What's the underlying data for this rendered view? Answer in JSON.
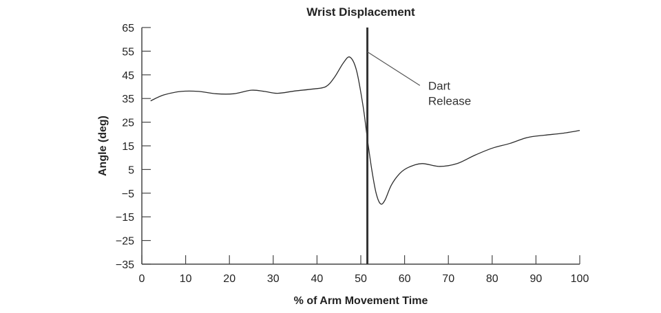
{
  "chart_data": {
    "type": "line",
    "title": "Wrist Displacement",
    "xlabel": "% of Arm Movement Time",
    "ylabel": "Angle (deg)",
    "xlim": [
      0,
      100
    ],
    "ylim": [
      -35,
      65
    ],
    "x_ticks": [
      "0",
      "10",
      "20",
      "30",
      "40",
      "50",
      "60",
      "70",
      "80",
      "90",
      "100"
    ],
    "y_ticks": [
      "65",
      "55",
      "45",
      "35",
      "25",
      "15",
      "5",
      "−5",
      "−15",
      "−25",
      "−35"
    ],
    "grid": false,
    "series": [
      {
        "x": [
          2,
          5,
          9,
          13,
          17,
          21,
          25,
          28,
          31,
          35,
          39,
          42,
          44,
          46,
          47.5,
          49,
          50.5,
          51.5,
          52.5,
          53.5,
          54.5,
          55.5,
          57,
          59,
          61,
          64,
          68,
          72,
          76,
          80,
          84,
          88,
          92,
          96,
          100
        ],
        "y": [
          34,
          36.5,
          38,
          38,
          37,
          37,
          38.5,
          38,
          37.2,
          38.2,
          39,
          40,
          44,
          50,
          52.5,
          47,
          32,
          18,
          5,
          -5,
          -9.5,
          -8,
          -1.5,
          3.5,
          6,
          7.5,
          6.3,
          7.5,
          11,
          14,
          16,
          18.5,
          19.5,
          20.3,
          21.5
        ],
        "color": "#2b2b2b"
      }
    ],
    "annotations": [
      {
        "type": "vertical_line",
        "x": 51.5,
        "label_lines": [
          "Dart",
          "Release"
        ],
        "pointer_from": [
          51.5,
          54.7
        ],
        "pointer_to": [
          63.5,
          40.5
        ]
      }
    ]
  }
}
